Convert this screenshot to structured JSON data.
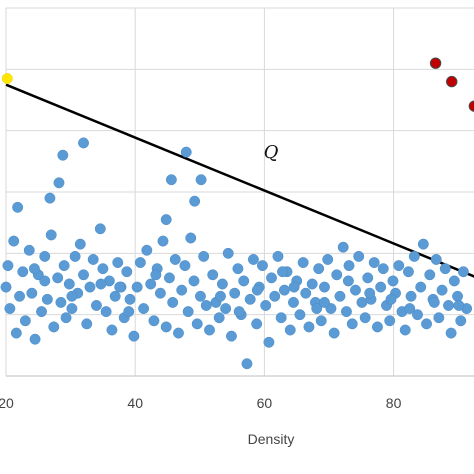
{
  "colors": {
    "blue_points": "#5B9BD5",
    "blue_edge": "#4A8AC4",
    "red_points": "#C00000",
    "yellow_point": "#FFE600",
    "line": "#000000",
    "grid": "#D9D9D9"
  },
  "chart_data": {
    "type": "scatter",
    "xlabel": "Density",
    "ylabel": "",
    "xlim": [
      20,
      93
    ],
    "ylim": [
      0,
      12
    ],
    "grid": true,
    "x_ticks": [
      20,
      40,
      60,
      80
    ],
    "x_tick_labels": [
      "20",
      "40",
      "60",
      "80"
    ],
    "line": {
      "label": "Q",
      "points": [
        [
          20,
          9.5
        ],
        [
          93,
          3.2
        ]
      ]
    },
    "series": [
      {
        "marker_color": "#5B9BD5",
        "points": [
          [
            20,
            2.9
          ],
          [
            20.3,
            3.6
          ],
          [
            20.6,
            2.2
          ],
          [
            21.2,
            4.4
          ],
          [
            21.6,
            1.4
          ],
          [
            22.1,
            2.6
          ],
          [
            22.6,
            3.4
          ],
          [
            23,
            1.8
          ],
          [
            23.6,
            4.1
          ],
          [
            24,
            2.7
          ],
          [
            24.5,
            1.2
          ],
          [
            25,
            3.3
          ],
          [
            25.5,
            2.1
          ],
          [
            26,
            3.9
          ],
          [
            26.4,
            2.5
          ],
          [
            27,
            4.6
          ],
          [
            27.4,
            1.6
          ],
          [
            28,
            3.2
          ],
          [
            28.5,
            2.4
          ],
          [
            29,
            3.6
          ],
          [
            29.3,
            1.9
          ],
          [
            29.8,
            3
          ],
          [
            30.2,
            2.2
          ],
          [
            30.7,
            3.9
          ],
          [
            31.1,
            2.7
          ],
          [
            31.5,
            4.3
          ],
          [
            32,
            3.3
          ],
          [
            32.5,
            1.7
          ],
          [
            33,
            2.9
          ],
          [
            33.5,
            3.8
          ],
          [
            34,
            2.3
          ],
          [
            34.6,
            4.8
          ],
          [
            35,
            3.5
          ],
          [
            35.5,
            2.1
          ],
          [
            36,
            3.1
          ],
          [
            36.4,
            1.5
          ],
          [
            36.9,
            2.6
          ],
          [
            37.3,
            3.7
          ],
          [
            37.8,
            2.9
          ],
          [
            38.3,
            1.9
          ],
          [
            38.7,
            3.4
          ],
          [
            39.2,
            2.5
          ],
          [
            39.8,
            1.3
          ],
          [
            40.3,
            2.9
          ],
          [
            40.8,
            3.7
          ],
          [
            41.3,
            2.2
          ],
          [
            41.8,
            4.1
          ],
          [
            42.4,
            3
          ],
          [
            42.9,
            1.8
          ],
          [
            43.4,
            3.5
          ],
          [
            43.9,
            2.7
          ],
          [
            44.3,
            4.4
          ],
          [
            44.8,
            1.6
          ],
          [
            45.3,
            3.2
          ],
          [
            45.8,
            2.4
          ],
          [
            46.2,
            3.8
          ],
          [
            46.7,
            1.4
          ],
          [
            47.2,
            2.8
          ],
          [
            47.7,
            3.6
          ],
          [
            48.2,
            2.1
          ],
          [
            48.6,
            4.5
          ],
          [
            49.1,
            3.1
          ],
          [
            49.6,
            1.7
          ],
          [
            50.1,
            2.6
          ],
          [
            50.6,
            3.9
          ],
          [
            51,
            2.3
          ],
          [
            51.5,
            1.5
          ],
          [
            52,
            3.3
          ],
          [
            52.5,
            2.4
          ],
          [
            53,
            1.9
          ],
          [
            53.5,
            3
          ],
          [
            54,
            2.2
          ],
          [
            54.4,
            4
          ],
          [
            54.9,
            1.3
          ],
          [
            55.4,
            2.7
          ],
          [
            55.9,
            3.5
          ],
          [
            56.4,
            2
          ],
          [
            56.8,
            3.1
          ],
          [
            57.3,
            0.4
          ],
          [
            57.8,
            2.5
          ],
          [
            58.3,
            3.8
          ],
          [
            58.8,
            1.7
          ],
          [
            59.2,
            2.9
          ],
          [
            59.7,
            3.6
          ],
          [
            60.2,
            2.3
          ],
          [
            60.7,
            1.1
          ],
          [
            61.1,
            3.2
          ],
          [
            61.6,
            2.6
          ],
          [
            62.1,
            3.9
          ],
          [
            62.6,
            1.9
          ],
          [
            63.1,
            2.8
          ],
          [
            63.5,
            3.4
          ],
          [
            64,
            1.5
          ],
          [
            64.5,
            2.4
          ],
          [
            65,
            3.1
          ],
          [
            65.5,
            2
          ],
          [
            66,
            3.7
          ],
          [
            66.4,
            2.7
          ],
          [
            66.9,
            1.6
          ],
          [
            67.4,
            3
          ],
          [
            67.9,
            2.4
          ],
          [
            68.4,
            3.5
          ],
          [
            68.8,
            1.8
          ],
          [
            69.3,
            2.9
          ],
          [
            69.8,
            3.8
          ],
          [
            70.3,
            2.2
          ],
          [
            70.8,
            1.4
          ],
          [
            71.2,
            3.3
          ],
          [
            71.7,
            2.6
          ],
          [
            72.2,
            4.2
          ],
          [
            72.7,
            2.1
          ],
          [
            73.1,
            3.6
          ],
          [
            73.6,
            1.7
          ],
          [
            74.1,
            2.8
          ],
          [
            74.6,
            3.9
          ],
          [
            75.1,
            2.4
          ],
          [
            75.6,
            1.9
          ],
          [
            76,
            3.2
          ],
          [
            76.5,
            2.5
          ],
          [
            77,
            3.7
          ],
          [
            77.5,
            1.6
          ],
          [
            78,
            2.9
          ],
          [
            78.4,
            3.5
          ],
          [
            78.9,
            2.3
          ],
          [
            79.4,
            1.8
          ],
          [
            79.9,
            3.1
          ],
          [
            80.3,
            2.7
          ],
          [
            80.8,
            3.6
          ],
          [
            81.3,
            2.1
          ],
          [
            81.8,
            1.5
          ],
          [
            82.3,
            3.4
          ],
          [
            82.7,
            2.6
          ],
          [
            83.2,
            3.9
          ],
          [
            83.7,
            2
          ],
          [
            84.2,
            2.9
          ],
          [
            84.6,
            4.3
          ],
          [
            85.1,
            1.7
          ],
          [
            85.6,
            3.3
          ],
          [
            86.1,
            2.5
          ],
          [
            86.6,
            3.8
          ],
          [
            87,
            1.9
          ],
          [
            87.5,
            2.8
          ],
          [
            88,
            3.5
          ],
          [
            88.5,
            2.3
          ],
          [
            88.9,
            1.4
          ],
          [
            89.4,
            3.1
          ],
          [
            89.9,
            2.6
          ],
          [
            90.4,
            1.8
          ],
          [
            90.8,
            3.4
          ],
          [
            91.3,
            2.2
          ],
          [
            21.8,
            5.5
          ],
          [
            28.8,
            7.2
          ],
          [
            32,
            7.6
          ],
          [
            28.2,
            6.3
          ],
          [
            26.8,
            5.8
          ],
          [
            47.9,
            7.3
          ],
          [
            45.6,
            6.4
          ],
          [
            50.2,
            6.4
          ],
          [
            49.2,
            5.7
          ],
          [
            44.8,
            5.1
          ],
          [
            26,
            3.1
          ],
          [
            34.7,
            3
          ],
          [
            39,
            2.1
          ],
          [
            53.2,
            2.6
          ],
          [
            56.1,
            2.1
          ],
          [
            64.6,
            2.9
          ],
          [
            68.1,
            2.2
          ],
          [
            73,
            3.1
          ],
          [
            76.3,
            2.7
          ],
          [
            82.5,
            2.2
          ],
          [
            86.3,
            2.4
          ],
          [
            90.1,
            2.3
          ],
          [
            30.2,
            2.6
          ],
          [
            43.2,
            3.3
          ],
          [
            58.9,
            2.8
          ],
          [
            69.3,
            2.4
          ],
          [
            79.6,
            2.5
          ],
          [
            24.4,
            3.5
          ],
          [
            37.6,
            2.9
          ],
          [
            62.8,
            3.4
          ]
        ]
      },
      {
        "marker_color": "#C00000",
        "points": [
          [
            86.5,
            10.2
          ],
          [
            89,
            9.6
          ],
          [
            92.5,
            8.8
          ]
        ]
      },
      {
        "marker_color": "#FFE600",
        "points": [
          [
            20.2,
            9.7
          ]
        ]
      }
    ]
  }
}
